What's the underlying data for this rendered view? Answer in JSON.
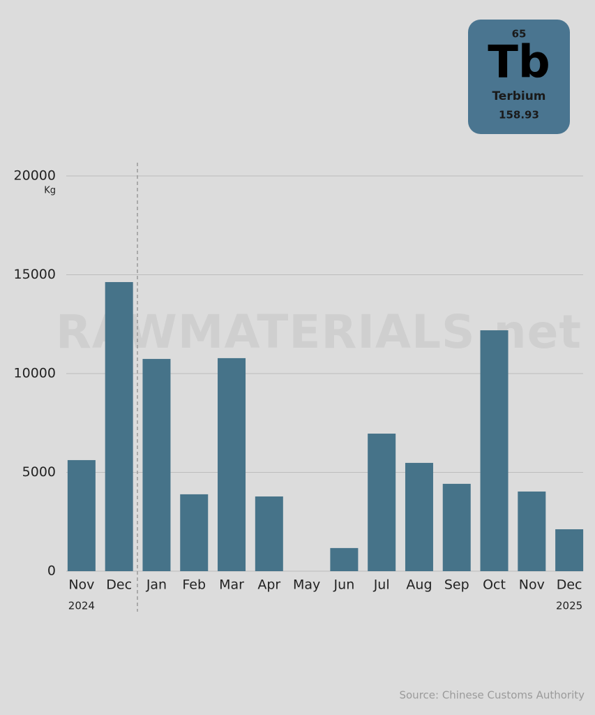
{
  "chart_data": {
    "type": "bar",
    "y_label": "Kg",
    "categories": [
      "Nov",
      "Dec",
      "Jan",
      "Feb",
      "Mar",
      "Apr",
      "May",
      "Jun",
      "Jul",
      "Aug",
      "Sep",
      "Oct",
      "Nov",
      "Dec"
    ],
    "years": [
      "2024",
      "2025"
    ],
    "values": [
      5620,
      14630,
      10740,
      3890,
      10780,
      3780,
      0,
      1170,
      6960,
      5480,
      4420,
      12190,
      4030,
      2120
    ],
    "color": "#467389",
    "ylim": [
      0,
      20000
    ],
    "yticks": [
      0,
      5000,
      10000,
      15000,
      20000
    ],
    "grid": true,
    "watermark": "RAWMATERIALS.net",
    "source": "Source: Chinese Customs Authority"
  },
  "element": {
    "number": 65,
    "symbol": "Tb",
    "name": "Terbium",
    "mass": 158.93
  }
}
